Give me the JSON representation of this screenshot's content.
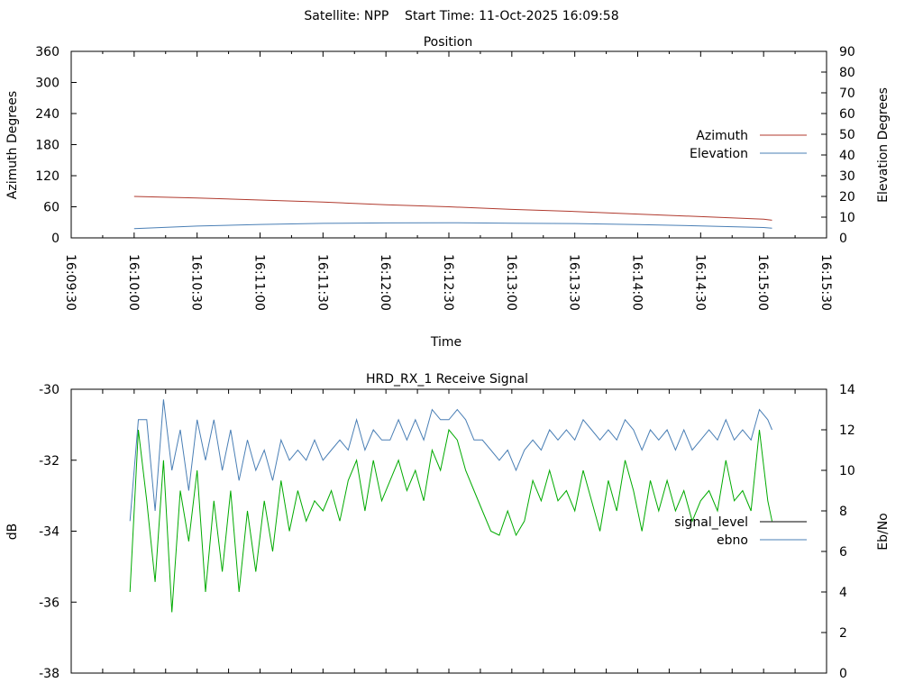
{
  "header": {
    "title": "Satellite: NPP    Start Time: 11-Oct-2025 16:09:58"
  },
  "chart_data": [
    {
      "type": "line",
      "title": "Position",
      "xlabel": "Time",
      "ylabel": "Azimuth Degrees",
      "y2label": "Elevation Degrees",
      "xticks": [
        "16:09:30",
        "16:10:00",
        "16:10:30",
        "16:11:00",
        "16:11:30",
        "16:12:00",
        "16:12:30",
        "16:13:00",
        "16:13:30",
        "16:14:00",
        "16:14:30",
        "16:15:00",
        "16:15:30"
      ],
      "ylim": [
        0,
        360
      ],
      "yticks": [
        0,
        60,
        120,
        180,
        240,
        300,
        360
      ],
      "y2lim": [
        0,
        90
      ],
      "y2ticks": [
        0,
        10,
        20,
        30,
        40,
        50,
        60,
        70,
        80,
        90
      ],
      "legend_position": "right",
      "series": [
        {
          "name": "Azimuth",
          "axis": "left",
          "color": "#b03a2e",
          "x": [
            "16:10:00",
            "16:10:30",
            "16:11:00",
            "16:11:30",
            "16:12:00",
            "16:12:30",
            "16:13:00",
            "16:13:30",
            "16:14:00",
            "16:14:30",
            "16:15:00",
            "16:15:04"
          ],
          "values": [
            80,
            77,
            73,
            69,
            64,
            60,
            55,
            51,
            46,
            41,
            36,
            34
          ]
        },
        {
          "name": "Elevation",
          "axis": "right",
          "color": "#4a7fb5",
          "x": [
            "16:10:00",
            "16:10:30",
            "16:11:00",
            "16:11:30",
            "16:12:00",
            "16:12:30",
            "16:13:00",
            "16:13:30",
            "16:14:00",
            "16:14:30",
            "16:15:00",
            "16:15:04"
          ],
          "values": [
            4.5,
            5.7,
            6.5,
            7.0,
            7.2,
            7.3,
            7.1,
            6.9,
            6.4,
            5.8,
            5.0,
            4.7
          ]
        }
      ]
    },
    {
      "type": "line",
      "title": "HRD_RX_1 Receive Signal",
      "xlabel": "",
      "ylabel": "dB",
      "y2label": "Eb/No",
      "ylim": [
        -38,
        -30
      ],
      "yticks": [
        -38,
        -36,
        -34,
        -32,
        -30
      ],
      "y2lim": [
        0,
        14
      ],
      "y2ticks": [
        0,
        2,
        4,
        6,
        8,
        10,
        12,
        14
      ],
      "legend_position": "right",
      "series": [
        {
          "name": "signal_level",
          "axis": "left",
          "color": "#000000",
          "values": []
        },
        {
          "name": "ebno",
          "axis": "right",
          "color": "#00aa00",
          "x": [
            "16:09:58",
            "16:10:02",
            "16:10:06",
            "16:10:10",
            "16:10:14",
            "16:10:18",
            "16:10:22",
            "16:10:26",
            "16:10:30",
            "16:10:34",
            "16:10:38",
            "16:10:42",
            "16:10:46",
            "16:10:50",
            "16:10:54",
            "16:10:58",
            "16:11:02",
            "16:11:06",
            "16:11:10",
            "16:11:14",
            "16:11:18",
            "16:11:22",
            "16:11:26",
            "16:11:30",
            "16:11:34",
            "16:11:38",
            "16:11:42",
            "16:11:46",
            "16:11:50",
            "16:11:54",
            "16:11:58",
            "16:12:02",
            "16:12:06",
            "16:12:10",
            "16:12:14",
            "16:12:18",
            "16:12:22",
            "16:12:26",
            "16:12:30",
            "16:12:34",
            "16:12:38",
            "16:12:42",
            "16:12:46",
            "16:12:50",
            "16:12:54",
            "16:12:58",
            "16:13:02",
            "16:13:06",
            "16:13:10",
            "16:13:14",
            "16:13:18",
            "16:13:22",
            "16:13:26",
            "16:13:30",
            "16:13:34",
            "16:13:38",
            "16:13:42",
            "16:13:46",
            "16:13:50",
            "16:13:54",
            "16:13:58",
            "16:14:02",
            "16:14:06",
            "16:14:10",
            "16:14:14",
            "16:14:18",
            "16:14:22",
            "16:14:26",
            "16:14:30",
            "16:14:34",
            "16:14:38",
            "16:14:42",
            "16:14:46",
            "16:14:50",
            "16:14:54",
            "16:14:58",
            "16:15:02",
            "16:15:04"
          ],
          "values": [
            4.0,
            12.0,
            8.5,
            4.5,
            10.5,
            3.0,
            9.0,
            6.5,
            10.0,
            4.0,
            8.5,
            5.0,
            9.0,
            4.0,
            8.0,
            5.0,
            8.5,
            6.0,
            9.5,
            7.0,
            9.0,
            7.5,
            8.5,
            8.0,
            9.0,
            7.5,
            9.5,
            10.5,
            8.0,
            10.5,
            8.5,
            9.5,
            10.5,
            9.0,
            10.0,
            8.5,
            11.0,
            10.0,
            12.0,
            11.5,
            10.0,
            9.0,
            8.0,
            7.0,
            6.8,
            8.0,
            6.8,
            7.5,
            9.5,
            8.5,
            10.0,
            8.5,
            9.0,
            8.0,
            10.0,
            8.5,
            7.0,
            9.5,
            8.0,
            10.5,
            9.0,
            7.0,
            9.5,
            8.0,
            9.5,
            8.0,
            9.0,
            7.5,
            8.5,
            9.0,
            8.0,
            10.5,
            8.5,
            9.0,
            8.0,
            12.0,
            8.5,
            7.5
          ]
        },
        {
          "name": "",
          "axis": "right",
          "color": "#4a7fb5",
          "x": [
            "16:09:58",
            "16:10:02",
            "16:10:06",
            "16:10:10",
            "16:10:14",
            "16:10:18",
            "16:10:22",
            "16:10:26",
            "16:10:30",
            "16:10:34",
            "16:10:38",
            "16:10:42",
            "16:10:46",
            "16:10:50",
            "16:10:54",
            "16:10:58",
            "16:11:02",
            "16:11:06",
            "16:11:10",
            "16:11:14",
            "16:11:18",
            "16:11:22",
            "16:11:26",
            "16:11:30",
            "16:11:34",
            "16:11:38",
            "16:11:42",
            "16:11:46",
            "16:11:50",
            "16:11:54",
            "16:11:58",
            "16:12:02",
            "16:12:06",
            "16:12:10",
            "16:12:14",
            "16:12:18",
            "16:12:22",
            "16:12:26",
            "16:12:30",
            "16:12:34",
            "16:12:38",
            "16:12:42",
            "16:12:46",
            "16:12:50",
            "16:12:54",
            "16:12:58",
            "16:13:02",
            "16:13:06",
            "16:13:10",
            "16:13:14",
            "16:13:18",
            "16:13:22",
            "16:13:26",
            "16:13:30",
            "16:13:34",
            "16:13:38",
            "16:13:42",
            "16:13:46",
            "16:13:50",
            "16:13:54",
            "16:13:58",
            "16:14:02",
            "16:14:06",
            "16:14:10",
            "16:14:14",
            "16:14:18",
            "16:14:22",
            "16:14:26",
            "16:14:30",
            "16:14:34",
            "16:14:38",
            "16:14:42",
            "16:14:46",
            "16:14:50",
            "16:14:54",
            "16:14:58",
            "16:15:02",
            "16:15:04"
          ],
          "values": [
            7.5,
            12.5,
            12.5,
            8.0,
            13.5,
            10.0,
            12.0,
            9.0,
            12.5,
            10.5,
            12.5,
            10.0,
            12.0,
            9.5,
            11.5,
            10.0,
            11.0,
            9.5,
            11.5,
            10.5,
            11.0,
            10.5,
            11.5,
            10.5,
            11.0,
            11.5,
            11.0,
            12.5,
            11.0,
            12.0,
            11.5,
            11.5,
            12.5,
            11.5,
            12.5,
            11.5,
            13.0,
            12.5,
            12.5,
            13.0,
            12.5,
            11.5,
            11.5,
            11.0,
            10.5,
            11.0,
            10.0,
            11.0,
            11.5,
            11.0,
            12.0,
            11.5,
            12.0,
            11.5,
            12.5,
            12.0,
            11.5,
            12.0,
            11.5,
            12.5,
            12.0,
            11.0,
            12.0,
            11.5,
            12.0,
            11.0,
            12.0,
            11.0,
            11.5,
            12.0,
            11.5,
            12.5,
            11.5,
            12.0,
            11.5,
            13.0,
            12.5,
            12.0
          ]
        }
      ]
    }
  ]
}
